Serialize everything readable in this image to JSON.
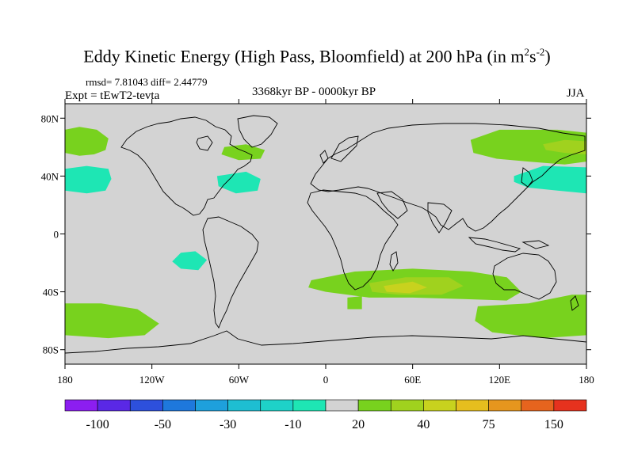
{
  "title": {
    "main": "Eddy Kinetic Energy (High Pass, Bloomfield) at 200 hPa (in m",
    "sup1": "2",
    "mid": "s",
    "sup2": "-2",
    "close": ")"
  },
  "stats": "rmsd= 7.81043 diff= 2.44779",
  "expt": "Expt = tEwT2-tevta",
  "period": "3368kyr BP - 0000kyr BP",
  "season": "JJA",
  "map": {
    "lon_range": [
      -180,
      180
    ],
    "lat_range": [
      -90,
      90
    ],
    "ocean_fill": "#d3d3d3",
    "lat_ticks": [
      {
        "lat": 80,
        "label": "80N"
      },
      {
        "lat": 40,
        "label": "40N"
      },
      {
        "lat": 0,
        "label": "0"
      },
      {
        "lat": -40,
        "label": "40S"
      },
      {
        "lat": -80,
        "label": "80S"
      }
    ],
    "lon_ticks": [
      {
        "lon": -180,
        "label": "180"
      },
      {
        "lon": -120,
        "label": "120W"
      },
      {
        "lon": -60,
        "label": "60W"
      },
      {
        "lon": 0,
        "label": "0"
      },
      {
        "lon": 60,
        "label": "60E"
      },
      {
        "lon": 120,
        "label": "120E"
      },
      {
        "lon": 180,
        "label": "180"
      }
    ],
    "anomaly_regions": [
      {
        "name": "n-pacific-positive",
        "value": 20,
        "pts": [
          [
            -180,
            72
          ],
          [
            -170,
            74
          ],
          [
            -158,
            72
          ],
          [
            -150,
            66
          ],
          [
            -152,
            58
          ],
          [
            -160,
            55
          ],
          [
            -170,
            54
          ],
          [
            -180,
            56
          ]
        ]
      },
      {
        "name": "n-pacific-negative",
        "value": -10,
        "pts": [
          [
            -180,
            45
          ],
          [
            -165,
            47
          ],
          [
            -150,
            45
          ],
          [
            -148,
            38
          ],
          [
            -152,
            30
          ],
          [
            -165,
            28
          ],
          [
            -180,
            30
          ]
        ]
      },
      {
        "name": "n-atlantic-positive",
        "value": 20,
        "pts": [
          [
            -70,
            60
          ],
          [
            -55,
            62
          ],
          [
            -42,
            58
          ],
          [
            -45,
            52
          ],
          [
            -60,
            51
          ],
          [
            -72,
            55
          ]
        ]
      },
      {
        "name": "n-atlantic-negative",
        "value": -10,
        "pts": [
          [
            -75,
            40
          ],
          [
            -55,
            43
          ],
          [
            -45,
            38
          ],
          [
            -47,
            30
          ],
          [
            -62,
            28
          ],
          [
            -74,
            33
          ]
        ]
      },
      {
        "name": "siberia-positive",
        "value": 20,
        "pts": [
          [
            100,
            65
          ],
          [
            120,
            72
          ],
          [
            160,
            72
          ],
          [
            180,
            70
          ],
          [
            180,
            50
          ],
          [
            165,
            48
          ],
          [
            140,
            50
          ],
          [
            118,
            52
          ],
          [
            102,
            56
          ]
        ]
      },
      {
        "name": "east-siberia-positive",
        "value": 30,
        "pts": [
          [
            150,
            62
          ],
          [
            165,
            65
          ],
          [
            180,
            64
          ],
          [
            180,
            55
          ],
          [
            165,
            56
          ],
          [
            152,
            58
          ]
        ]
      },
      {
        "name": "nw-pacific-negative",
        "value": -10,
        "pts": [
          [
            130,
            40
          ],
          [
            150,
            47
          ],
          [
            180,
            46
          ],
          [
            180,
            28
          ],
          [
            160,
            30
          ],
          [
            140,
            32
          ],
          [
            130,
            36
          ]
        ]
      },
      {
        "name": "se-pacific-negative",
        "value": -10,
        "pts": [
          [
            -100,
            -13
          ],
          [
            -90,
            -12
          ],
          [
            -82,
            -18
          ],
          [
            -88,
            -25
          ],
          [
            -100,
            -24
          ],
          [
            -106,
            -19
          ]
        ]
      },
      {
        "name": "s-pacific-positive",
        "value": 20,
        "pts": [
          [
            -180,
            -48
          ],
          [
            -155,
            -48
          ],
          [
            -130,
            -52
          ],
          [
            -115,
            -62
          ],
          [
            -125,
            -70
          ],
          [
            -150,
            -72
          ],
          [
            -180,
            -70
          ]
        ]
      },
      {
        "name": "s-indian-positive",
        "value": 20,
        "pts": [
          [
            -10,
            -32
          ],
          [
            20,
            -26
          ],
          [
            60,
            -24
          ],
          [
            100,
            -26
          ],
          [
            125,
            -30
          ],
          [
            135,
            -40
          ],
          [
            125,
            -46
          ],
          [
            95,
            -45
          ],
          [
            60,
            -44
          ],
          [
            30,
            -44
          ],
          [
            0,
            -40
          ],
          [
            -12,
            -37
          ]
        ]
      },
      {
        "name": "s-indian-core",
        "value": 30,
        "pts": [
          [
            30,
            -34
          ],
          [
            55,
            -30
          ],
          [
            85,
            -30
          ],
          [
            95,
            -36
          ],
          [
            80,
            -42
          ],
          [
            50,
            -42
          ],
          [
            32,
            -40
          ]
        ]
      },
      {
        "name": "s-indian-max",
        "value": 40,
        "pts": [
          [
            40,
            -36
          ],
          [
            60,
            -33
          ],
          [
            70,
            -37
          ],
          [
            58,
            -41
          ],
          [
            42,
            -40
          ]
        ]
      },
      {
        "name": "s-atlantic-tail",
        "value": 20,
        "pts": [
          [
            15,
            -44
          ],
          [
            25,
            -43
          ],
          [
            25,
            -52
          ],
          [
            15,
            -52
          ]
        ]
      },
      {
        "name": "s-australia-positive",
        "value": 20,
        "pts": [
          [
            105,
            -50
          ],
          [
            140,
            -48
          ],
          [
            170,
            -42
          ],
          [
            180,
            -42
          ],
          [
            180,
            -70
          ],
          [
            150,
            -72
          ],
          [
            115,
            -68
          ],
          [
            103,
            -60
          ]
        ]
      }
    ]
  },
  "colorbar": {
    "colors": [
      "#8c1ef0",
      "#5a28e6",
      "#2d50dc",
      "#1e78dc",
      "#1ea0dc",
      "#1ebed2",
      "#1ed2c8",
      "#1ee6b4",
      "#d3d3d3",
      "#78d21e",
      "#a0d21e",
      "#c8d21e",
      "#e6be1e",
      "#e6961e",
      "#e6641e",
      "#e6321e"
    ],
    "labels": [
      "-100",
      "-50",
      "-30",
      "-10",
      "20",
      "40",
      "75",
      "150"
    ]
  }
}
